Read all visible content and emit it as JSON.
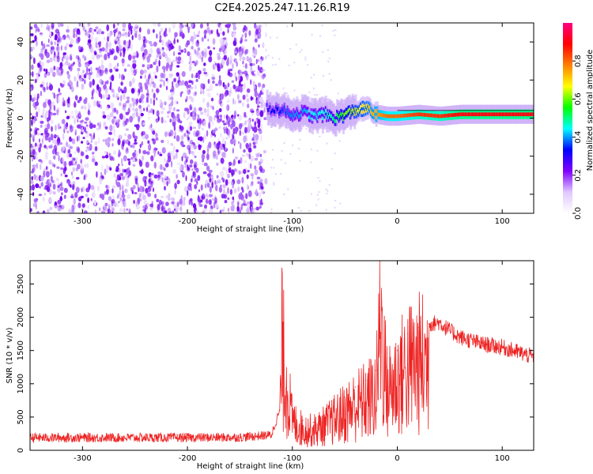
{
  "title": "C2E4.2025.247.11.26.R19",
  "chart_data": [
    {
      "type": "heatmap",
      "xlabel": "Height of straight line (km)",
      "ylabel": "Frequency (Hz)",
      "xlim": [
        -350,
        130
      ],
      "ylim": [
        -50,
        50
      ],
      "xticks": [
        -300,
        -200,
        -100,
        0,
        100
      ],
      "yticks": [
        -40,
        -20,
        0,
        20,
        40
      ],
      "colorbar": {
        "label": "Normalized spectral amplitude",
        "range": [
          0,
          1
        ],
        "ticks": [
          "0.0",
          "0.2",
          "0.4",
          "0.6",
          "0.8"
        ],
        "colormap": [
          "#ffffff",
          "#e0c8ff",
          "#8000ff",
          "#0000ff",
          "#00ffff",
          "#00ff00",
          "#ffff00",
          "#ff8000",
          "#ff0000",
          "#ff0080"
        ]
      },
      "noise_region": {
        "x": [
          -350,
          -125
        ],
        "y": [
          -50,
          50
        ],
        "amplitude": 0.05
      },
      "signal_start_km": -125,
      "ridge": {
        "x": [
          -125,
          -110,
          -100,
          -90,
          -80,
          -70,
          -60,
          -50,
          -40,
          -30,
          -20,
          -10,
          0,
          20,
          40,
          60,
          80,
          100,
          130
        ],
        "frequency": [
          5,
          4,
          2,
          3,
          1,
          2,
          0,
          2,
          4,
          5,
          2,
          1,
          1,
          2,
          1,
          2,
          2,
          2,
          2
        ],
        "amplitude": [
          0.3,
          0.35,
          0.4,
          0.4,
          0.45,
          0.45,
          0.5,
          0.6,
          0.65,
          0.7,
          0.75,
          0.8,
          0.8,
          0.85,
          0.85,
          0.9,
          0.9,
          0.9,
          0.9
        ]
      },
      "grid": false
    },
    {
      "type": "line",
      "xlabel": "Height of straight line (km)",
      "ylabel": "SNR (10 * v/v)",
      "xlim": [
        -350,
        130
      ],
      "ylim": [
        0,
        2850
      ],
      "xticks": [
        -300,
        -200,
        -100,
        0,
        100
      ],
      "yticks": [
        0,
        500,
        1000,
        1500,
        2000,
        2500
      ],
      "color": "#ee2222",
      "series": [
        {
          "x": [
            -350,
            -300,
            -250,
            -200,
            -150,
            -120,
            -112,
            -110,
            -100,
            -90,
            -80,
            -70,
            -60,
            -50,
            -40,
            -30,
            -20,
            -16,
            -10,
            0,
            10,
            20,
            30,
            40,
            50,
            60,
            80,
            100,
            130
          ],
          "y": [
            190,
            190,
            190,
            190,
            195,
            230,
            600,
            2150,
            600,
            450,
            420,
            520,
            650,
            800,
            950,
            1050,
            1200,
            2850,
            1250,
            1500,
            1750,
            1850,
            1900,
            1920,
            1800,
            1700,
            1600,
            1550,
            1400
          ]
        }
      ],
      "grid": false
    }
  ]
}
